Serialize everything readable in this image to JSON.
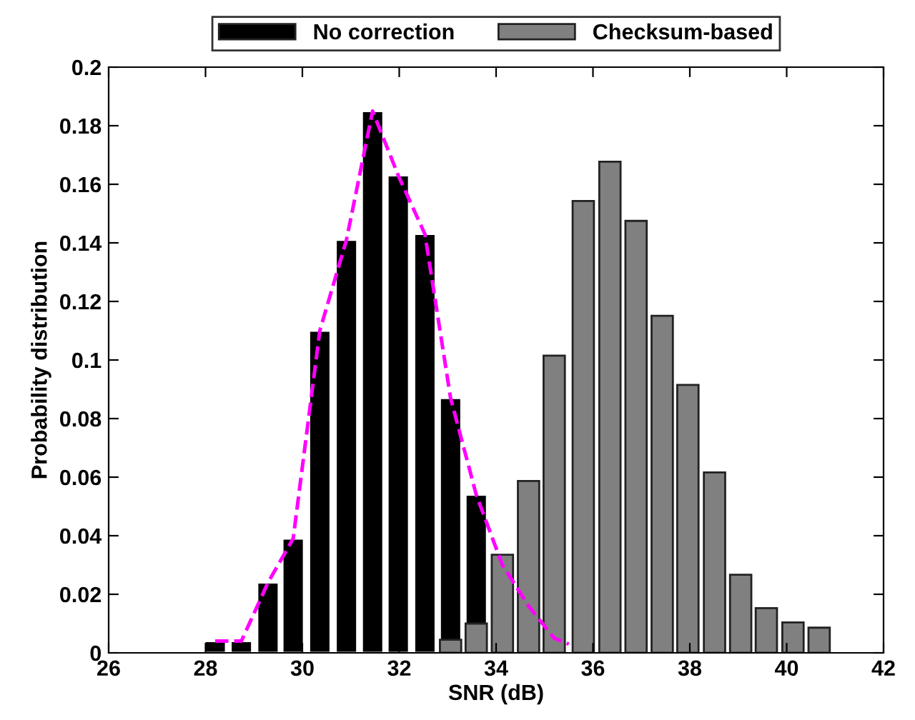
{
  "chart_data": {
    "type": "bar",
    "xlabel": "SNR (dB)",
    "ylabel": "Probability distribution",
    "xlim": [
      26,
      42
    ],
    "xticks": [
      26,
      28,
      30,
      32,
      34,
      36,
      38,
      40,
      42
    ],
    "ylim": [
      0,
      0.2
    ],
    "yticks": [
      0,
      0.02,
      0.04,
      0.06,
      0.08,
      0.1,
      0.12,
      0.14,
      0.16,
      0.18,
      0.2
    ],
    "legend": "top",
    "grid": false,
    "series": [
      {
        "name": "No correction",
        "color": "#000000",
        "x": [
          28.2,
          28.74,
          29.29,
          29.81,
          30.36,
          30.91,
          31.45,
          31.98,
          32.53,
          33.06,
          33.59
        ],
        "values": [
          0.004,
          0.004,
          0.024,
          0.039,
          0.11,
          0.141,
          0.185,
          0.163,
          0.143,
          0.087,
          0.054
        ]
      },
      {
        "name": "Checksum-based",
        "color": "#808080",
        "x": [
          33.06,
          33.59,
          34.13,
          34.67,
          35.2,
          35.8,
          36.35,
          36.89,
          37.43,
          37.96,
          38.51,
          39.05,
          39.58,
          40.13,
          40.67
        ],
        "values": [
          0.0045,
          0.01,
          0.0335,
          0.0587,
          0.1015,
          0.1543,
          0.1677,
          0.1475,
          0.1151,
          0.0915,
          0.0616,
          0.0267,
          0.0153,
          0.0104,
          0.0086
        ]
      },
      {
        "type": "line",
        "color": "#ff00ff",
        "line_style": "dashed",
        "x": [
          28.2,
          28.74,
          29.29,
          29.81,
          30.36,
          30.91,
          31.45,
          31.98,
          32.53,
          33.06,
          33.59,
          34.13,
          34.67,
          35.2,
          35.5
        ],
        "values": [
          0.004,
          0.004,
          0.024,
          0.039,
          0.11,
          0.141,
          0.185,
          0.163,
          0.143,
          0.087,
          0.054,
          0.03,
          0.016,
          0.005,
          0.003
        ]
      }
    ]
  }
}
